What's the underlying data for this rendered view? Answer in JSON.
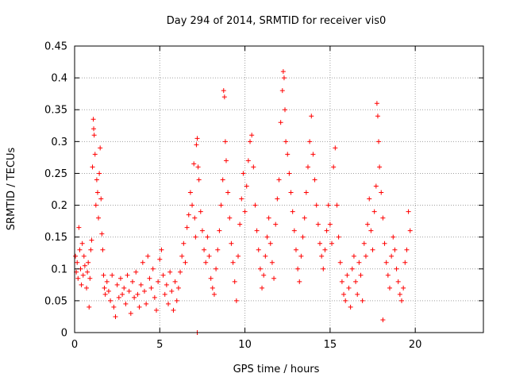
{
  "chart_data": {
    "type": "scatter",
    "title": "Day 294 of 2014, SRMTID for receiver vis0",
    "xlabel": "GPS time / hours",
    "ylabel": "SRMTID / TECUs",
    "xlim": [
      0,
      24
    ],
    "ylim": [
      0,
      0.45
    ],
    "xticks": [
      0,
      5,
      10,
      15,
      20
    ],
    "yticks": [
      0,
      0.05,
      0.1,
      0.15,
      0.2,
      0.25,
      0.3,
      0.35,
      0.4,
      0.45
    ],
    "xtick_labels": [
      "0",
      "5",
      "10",
      "15",
      "20"
    ],
    "ytick_labels": [
      "0",
      "0.05",
      "0.1",
      "0.15",
      "0.2",
      "0.25",
      "0.3",
      "0.35",
      "0.4",
      "0.45"
    ],
    "grid": true,
    "marker": "+",
    "color": "#ff0000",
    "series": [
      {
        "name": "vis0",
        "points": [
          [
            0.05,
            0.12
          ],
          [
            0.1,
            0.095
          ],
          [
            0.15,
            0.11
          ],
          [
            0.2,
            0.085
          ],
          [
            0.25,
            0.165
          ],
          [
            0.3,
            0.13
          ],
          [
            0.35,
            0.1
          ],
          [
            0.4,
            0.075
          ],
          [
            0.45,
            0.14
          ],
          [
            0.5,
            0.09
          ],
          [
            0.55,
            0.12
          ],
          [
            0.6,
            0.105
          ],
          [
            0.7,
            0.07
          ],
          [
            0.75,
            0.095
          ],
          [
            0.8,
            0.11
          ],
          [
            0.85,
            0.04
          ],
          [
            0.9,
            0.085
          ],
          [
            0.95,
            0.13
          ],
          [
            1.0,
            0.145
          ],
          [
            1.05,
            0.26
          ],
          [
            1.1,
            0.335
          ],
          [
            1.12,
            0.32
          ],
          [
            1.15,
            0.31
          ],
          [
            1.2,
            0.28
          ],
          [
            1.25,
            0.2
          ],
          [
            1.3,
            0.24
          ],
          [
            1.35,
            0.22
          ],
          [
            1.4,
            0.18
          ],
          [
            1.45,
            0.25
          ],
          [
            1.5,
            0.29
          ],
          [
            1.55,
            0.21
          ],
          [
            1.6,
            0.155
          ],
          [
            1.65,
            0.13
          ],
          [
            1.7,
            0.09
          ],
          [
            1.75,
            0.07
          ],
          [
            1.8,
            0.06
          ],
          [
            1.9,
            0.08
          ],
          [
            2.0,
            0.065
          ],
          [
            2.1,
            0.05
          ],
          [
            2.2,
            0.09
          ],
          [
            2.3,
            0.04
          ],
          [
            2.4,
            0.025
          ],
          [
            2.5,
            0.075
          ],
          [
            2.6,
            0.055
          ],
          [
            2.7,
            0.085
          ],
          [
            2.8,
            0.06
          ],
          [
            2.9,
            0.07
          ],
          [
            3.0,
            0.045
          ],
          [
            3.1,
            0.09
          ],
          [
            3.2,
            0.065
          ],
          [
            3.3,
            0.03
          ],
          [
            3.4,
            0.08
          ],
          [
            3.5,
            0.055
          ],
          [
            3.6,
            0.095
          ],
          [
            3.7,
            0.06
          ],
          [
            3.8,
            0.04
          ],
          [
            3.9,
            0.075
          ],
          [
            4.0,
            0.11
          ],
          [
            4.1,
            0.065
          ],
          [
            4.2,
            0.045
          ],
          [
            4.3,
            0.12
          ],
          [
            4.4,
            0.085
          ],
          [
            4.5,
            0.07
          ],
          [
            4.6,
            0.1
          ],
          [
            4.7,
            0.055
          ],
          [
            4.8,
            0.035
          ],
          [
            4.9,
            0.08
          ],
          [
            5.0,
            0.115
          ],
          [
            5.1,
            0.13
          ],
          [
            5.2,
            0.09
          ],
          [
            5.3,
            0.06
          ],
          [
            5.4,
            0.075
          ],
          [
            5.5,
            0.045
          ],
          [
            5.6,
            0.095
          ],
          [
            5.7,
            0.065
          ],
          [
            5.8,
            0.035
          ],
          [
            5.9,
            0.08
          ],
          [
            6.0,
            0.05
          ],
          [
            6.1,
            0.07
          ],
          [
            6.2,
            0.095
          ],
          [
            6.3,
            0.12
          ],
          [
            6.4,
            0.14
          ],
          [
            6.5,
            0.11
          ],
          [
            6.6,
            0.165
          ],
          [
            6.7,
            0.185
          ],
          [
            6.8,
            0.22
          ],
          [
            6.9,
            0.2
          ],
          [
            7.0,
            0.265
          ],
          [
            7.05,
            0.18
          ],
          [
            7.1,
            0.15
          ],
          [
            7.15,
            0.295
          ],
          [
            7.2,
            0.305
          ],
          [
            7.25,
            0.26
          ],
          [
            7.3,
            0.24
          ],
          [
            7.4,
            0.19
          ],
          [
            7.5,
            0.16
          ],
          [
            7.6,
            0.13
          ],
          [
            7.7,
            0.11
          ],
          [
            7.8,
            0.15
          ],
          [
            7.9,
            0.12
          ],
          [
            8.0,
            0.085
          ],
          [
            8.1,
            0.07
          ],
          [
            8.2,
            0.06
          ],
          [
            8.3,
            0.1
          ],
          [
            8.4,
            0.13
          ],
          [
            8.5,
            0.16
          ],
          [
            8.6,
            0.2
          ],
          [
            8.7,
            0.24
          ],
          [
            8.75,
            0.38
          ],
          [
            8.8,
            0.37
          ],
          [
            8.85,
            0.3
          ],
          [
            8.9,
            0.27
          ],
          [
            9.0,
            0.22
          ],
          [
            9.1,
            0.18
          ],
          [
            9.2,
            0.14
          ],
          [
            9.3,
            0.11
          ],
          [
            9.4,
            0.08
          ],
          [
            9.5,
            0.05
          ],
          [
            9.6,
            0.12
          ],
          [
            9.7,
            0.17
          ],
          [
            9.8,
            0.21
          ],
          [
            9.9,
            0.25
          ],
          [
            10.0,
            0.19
          ],
          [
            10.1,
            0.23
          ],
          [
            10.2,
            0.27
          ],
          [
            10.3,
            0.3
          ],
          [
            10.4,
            0.31
          ],
          [
            10.5,
            0.26
          ],
          [
            10.6,
            0.2
          ],
          [
            10.7,
            0.16
          ],
          [
            10.8,
            0.13
          ],
          [
            10.9,
            0.1
          ],
          [
            11.0,
            0.07
          ],
          [
            11.1,
            0.09
          ],
          [
            11.2,
            0.12
          ],
          [
            11.3,
            0.15
          ],
          [
            11.4,
            0.18
          ],
          [
            11.5,
            0.14
          ],
          [
            11.6,
            0.11
          ],
          [
            11.7,
            0.085
          ],
          [
            11.8,
            0.17
          ],
          [
            11.9,
            0.21
          ],
          [
            12.0,
            0.24
          ],
          [
            12.1,
            0.33
          ],
          [
            12.2,
            0.38
          ],
          [
            12.25,
            0.41
          ],
          [
            12.3,
            0.4
          ],
          [
            12.35,
            0.35
          ],
          [
            12.4,
            0.3
          ],
          [
            12.5,
            0.28
          ],
          [
            12.6,
            0.25
          ],
          [
            12.7,
            0.22
          ],
          [
            12.8,
            0.19
          ],
          [
            12.9,
            0.16
          ],
          [
            13.0,
            0.13
          ],
          [
            13.1,
            0.1
          ],
          [
            13.2,
            0.08
          ],
          [
            13.3,
            0.12
          ],
          [
            13.4,
            0.15
          ],
          [
            13.5,
            0.18
          ],
          [
            13.6,
            0.22
          ],
          [
            13.7,
            0.26
          ],
          [
            13.8,
            0.3
          ],
          [
            13.9,
            0.34
          ],
          [
            14.0,
            0.28
          ],
          [
            14.1,
            0.24
          ],
          [
            14.2,
            0.2
          ],
          [
            14.3,
            0.17
          ],
          [
            14.4,
            0.14
          ],
          [
            14.5,
            0.12
          ],
          [
            14.6,
            0.1
          ],
          [
            14.7,
            0.13
          ],
          [
            14.8,
            0.16
          ],
          [
            14.9,
            0.2
          ],
          [
            15.0,
            0.17
          ],
          [
            15.1,
            0.14
          ],
          [
            15.2,
            0.26
          ],
          [
            15.3,
            0.29
          ],
          [
            15.4,
            0.2
          ],
          [
            15.5,
            0.15
          ],
          [
            15.6,
            0.11
          ],
          [
            15.7,
            0.08
          ],
          [
            15.8,
            0.06
          ],
          [
            15.9,
            0.05
          ],
          [
            16.0,
            0.09
          ],
          [
            16.1,
            0.07
          ],
          [
            16.2,
            0.04
          ],
          [
            16.3,
            0.1
          ],
          [
            16.4,
            0.12
          ],
          [
            16.5,
            0.08
          ],
          [
            16.6,
            0.06
          ],
          [
            16.7,
            0.11
          ],
          [
            16.8,
            0.09
          ],
          [
            16.9,
            0.05
          ],
          [
            17.0,
            0.14
          ],
          [
            17.1,
            0.12
          ],
          [
            17.2,
            0.17
          ],
          [
            17.3,
            0.21
          ],
          [
            17.4,
            0.16
          ],
          [
            17.5,
            0.13
          ],
          [
            17.6,
            0.19
          ],
          [
            17.7,
            0.23
          ],
          [
            17.75,
            0.36
          ],
          [
            17.8,
            0.34
          ],
          [
            17.85,
            0.3
          ],
          [
            17.9,
            0.26
          ],
          [
            18.0,
            0.22
          ],
          [
            18.1,
            0.18
          ],
          [
            18.2,
            0.14
          ],
          [
            18.3,
            0.11
          ],
          [
            18.4,
            0.09
          ],
          [
            18.5,
            0.07
          ],
          [
            18.6,
            0.12
          ],
          [
            18.7,
            0.15
          ],
          [
            18.8,
            0.13
          ],
          [
            18.9,
            0.1
          ],
          [
            19.0,
            0.08
          ],
          [
            19.1,
            0.06
          ],
          [
            19.2,
            0.05
          ],
          [
            19.3,
            0.07
          ],
          [
            19.4,
            0.11
          ],
          [
            19.5,
            0.13
          ],
          [
            19.6,
            0.19
          ],
          [
            19.7,
            0.16
          ],
          [
            18.1,
            0.02
          ],
          [
            7.2,
            0.0
          ]
        ]
      }
    ]
  }
}
